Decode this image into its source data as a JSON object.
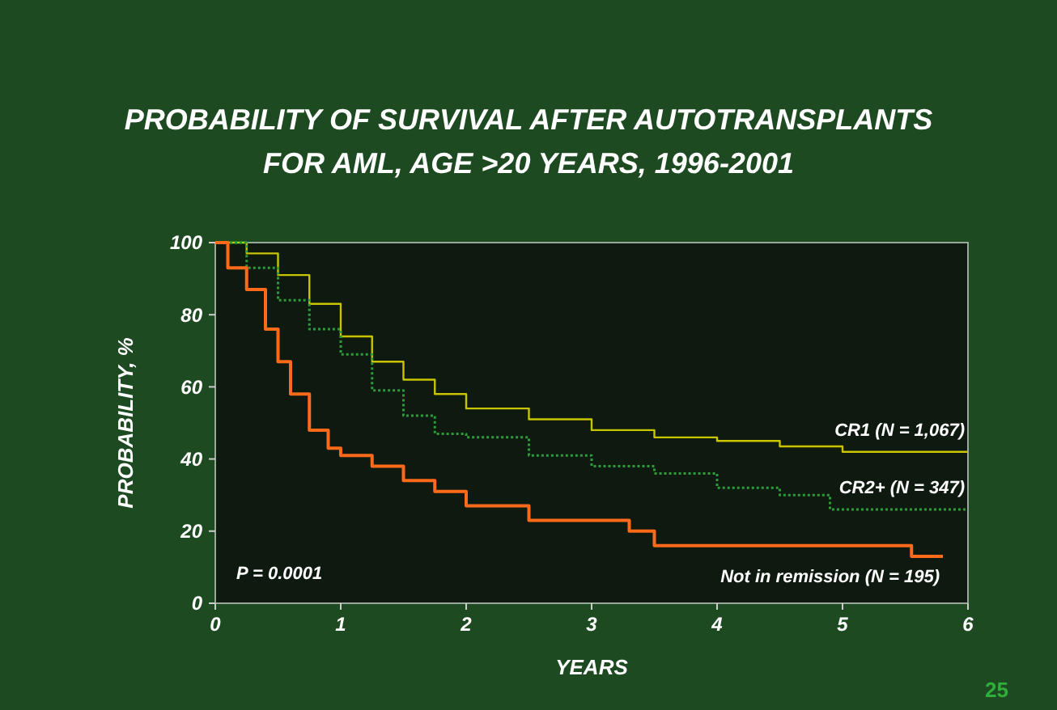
{
  "chart_data": {
    "type": "step",
    "title": "PROBABILITY OF SURVIVAL AFTER AUTOTRANSPLANTS FOR AML, AGE >20 YEARS, 1996-2001",
    "xlabel": "YEARS",
    "ylabel": "PROBABILITY, %",
    "xlim": [
      0,
      6
    ],
    "xticks": [
      0,
      1,
      2,
      3,
      4,
      5,
      6
    ],
    "ylim": [
      0,
      100
    ],
    "yticks": [
      0,
      20,
      40,
      60,
      80,
      100
    ],
    "grid": false,
    "series": [
      {
        "name": "CR1 (N = 1,067)",
        "color": "#c8c400",
        "line_style": "solid",
        "x": [
          0,
          0.25,
          0.5,
          0.75,
          1,
          1.25,
          1.5,
          1.75,
          2,
          2.5,
          3,
          3.5,
          4,
          4.5,
          5,
          6
        ],
        "values": [
          100,
          97,
          91,
          83,
          74,
          67,
          62,
          58,
          54,
          51,
          48,
          46,
          45,
          43.5,
          42,
          42
        ]
      },
      {
        "name": "CR2+ (N = 347)",
        "color": "#2e9b3a",
        "line_style": "dotted",
        "x": [
          0,
          0.25,
          0.5,
          0.75,
          1,
          1.25,
          1.5,
          1.75,
          2,
          2.5,
          3,
          3.5,
          4,
          4.5,
          4.9,
          6
        ],
        "values": [
          100,
          93,
          84,
          76,
          69,
          59,
          52,
          47,
          46,
          41,
          38,
          36,
          32,
          30,
          26,
          26
        ]
      },
      {
        "name": "Not in remission (N = 195)",
        "color": "#ff6a1a",
        "line_style": "solid",
        "x": [
          0,
          0.1,
          0.25,
          0.4,
          0.5,
          0.6,
          0.75,
          0.9,
          1,
          1.25,
          1.5,
          1.75,
          2,
          2.5,
          3.2,
          3.3,
          3.5,
          5.5,
          5.55,
          5.8
        ],
        "values": [
          100,
          93,
          87,
          76,
          67,
          58,
          48,
          43,
          41,
          38,
          34,
          31,
          27,
          23,
          23,
          20,
          16,
          16,
          13,
          13
        ]
      }
    ],
    "annotations": [
      "P = 0.0001",
      "25"
    ]
  }
}
